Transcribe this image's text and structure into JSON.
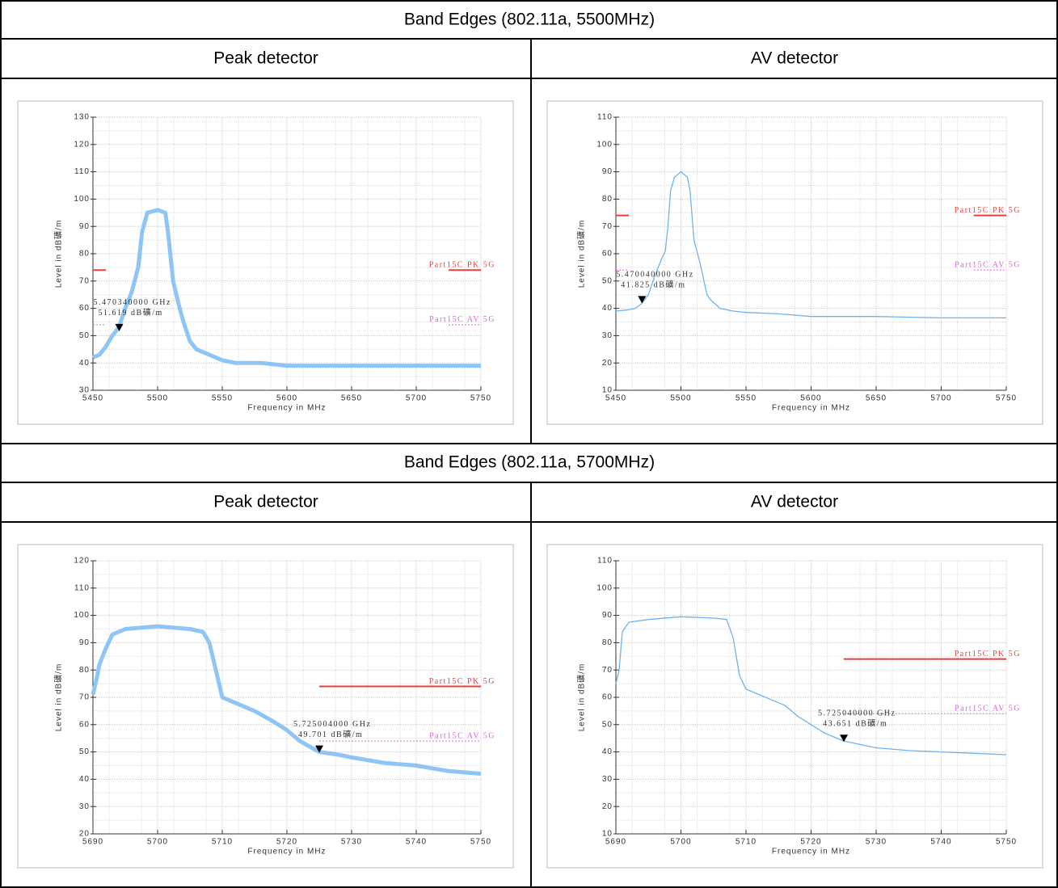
{
  "sections": [
    {
      "title": "Band Edges (802.11a, 5500MHz)",
      "headers": [
        "Peak detector",
        "AV detector"
      ]
    },
    {
      "title": "Band Edges (802.11a, 5700MHz)",
      "headers": [
        "Peak detector",
        "AV detector"
      ]
    }
  ],
  "chart_data": [
    {
      "type": "line",
      "x_label": "Frequency in MHz",
      "y_label": "Level in dB礦/m",
      "xlim": [
        5450,
        5750
      ],
      "ylim": [
        30,
        130
      ],
      "xticks": [
        5450,
        5500,
        5550,
        5600,
        5650,
        5700,
        5750
      ],
      "yticks": [
        30,
        40,
        50,
        60,
        70,
        80,
        90,
        100,
        110,
        120,
        130
      ],
      "grid": true,
      "series": [
        {
          "color": "#8ec5f5",
          "x": [
            5450,
            5455,
            5460,
            5465,
            5470,
            5475,
            5480,
            5485,
            5488,
            5492,
            5500,
            5506,
            5508,
            5512,
            5516,
            5520,
            5525,
            5530,
            5540,
            5550,
            5560,
            5580,
            5600,
            5625,
            5650,
            5675,
            5700,
            5725,
            5750
          ],
          "values": [
            42,
            43,
            46,
            50,
            53,
            60,
            66,
            75,
            88,
            95,
            96,
            95,
            88,
            70,
            62,
            55,
            48,
            45,
            43,
            41,
            40,
            40,
            39,
            39,
            39,
            39,
            39,
            39,
            39
          ]
        }
      ],
      "limits": [
        {
          "name": "Part15C PK 5G",
          "color": "#e84040",
          "value": 74,
          "ranges": [
            [
              5450,
              5460
            ],
            [
              5725,
              5750
            ]
          ]
        },
        {
          "name": "Part15C AV 5G",
          "color": "#e060e0",
          "value": 54,
          "dashed": true,
          "ranges": [
            [
              5450,
              5460
            ],
            [
              5725,
              5750
            ]
          ]
        }
      ],
      "marker": {
        "x": 5470.34,
        "y": 51.619,
        "freq_label": "5.470340000 GHz",
        "level_label": "51.619 dB礦/m"
      }
    },
    {
      "type": "line",
      "x_label": "Frequency in MHz",
      "y_label": "Level in dB礦/m",
      "xlim": [
        5450,
        5750
      ],
      "ylim": [
        10,
        110
      ],
      "xticks": [
        5450,
        5500,
        5550,
        5600,
        5650,
        5700,
        5750
      ],
      "yticks": [
        10,
        20,
        30,
        40,
        50,
        60,
        70,
        80,
        90,
        100,
        110
      ],
      "grid": true,
      "series": [
        {
          "color": "#6fb3ec",
          "x": [
            5450,
            5460,
            5465,
            5470,
            5475,
            5480,
            5485,
            5488,
            5490,
            5492,
            5495,
            5500,
            5505,
            5507,
            5510,
            5515,
            5520,
            5523,
            5530,
            5540,
            5550,
            5575,
            5600,
            5650,
            5700,
            5750
          ],
          "values": [
            39,
            39.5,
            40,
            41.8,
            45,
            52,
            58,
            61,
            70,
            83,
            88,
            90,
            88,
            83,
            65,
            56,
            45,
            43,
            40,
            39,
            38.5,
            38,
            37,
            37,
            36.5,
            36.5
          ]
        }
      ],
      "limits": [
        {
          "name": "Part15C PK 5G",
          "color": "#e84040",
          "value": 74,
          "ranges": [
            [
              5450,
              5460
            ],
            [
              5725,
              5750
            ]
          ]
        },
        {
          "name": "Part15C AV 5G",
          "color": "#e060e0",
          "value": 54,
          "dashed": true,
          "ranges": [
            [
              5450,
              5460
            ],
            [
              5725,
              5750
            ]
          ]
        }
      ],
      "marker": {
        "x": 5470.04,
        "y": 41.825,
        "freq_label": "5.470040000 GHz",
        "level_label": "41.825 dB礦/m"
      }
    },
    {
      "type": "line",
      "x_label": "Frequency in MHz",
      "y_label": "Level in dB礦/m",
      "xlim": [
        5690,
        5750
      ],
      "ylim": [
        20,
        120
      ],
      "xticks": [
        5690,
        5700,
        5710,
        5720,
        5730,
        5740,
        5750
      ],
      "yticks": [
        20,
        30,
        40,
        50,
        60,
        70,
        80,
        90,
        100,
        110,
        120
      ],
      "grid": true,
      "series": [
        {
          "color": "#8ec5f5",
          "x": [
            5690,
            5690.5,
            5691,
            5692,
            5693,
            5695,
            5700,
            5705,
            5707,
            5708,
            5709,
            5710,
            5712,
            5715,
            5718,
            5720,
            5722,
            5725,
            5728,
            5730,
            5735,
            5740,
            5745,
            5750
          ],
          "values": [
            71,
            76,
            82,
            88,
            93,
            95,
            96,
            95,
            94,
            90,
            80,
            70,
            68,
            65,
            61,
            58,
            54,
            50,
            49,
            48,
            46,
            45,
            43,
            42
          ]
        }
      ],
      "limits": [
        {
          "name": "Part15C PK 5G",
          "color": "#e84040",
          "value": 74,
          "ranges": [
            [
              5725,
              5750
            ]
          ]
        },
        {
          "name": "Part15C AV 5G",
          "color": "#e060e0",
          "value": 54,
          "dashed": true,
          "ranges": [
            [
              5725,
              5750
            ]
          ]
        }
      ],
      "marker": {
        "x": 5725.004,
        "y": 49.701,
        "freq_label": "5.725004000 GHz",
        "level_label": "49.701 dB礦/m"
      }
    },
    {
      "type": "line",
      "x_label": "Frequency in MHz",
      "y_label": "Level in dB礦/m",
      "xlim": [
        5690,
        5750
      ],
      "ylim": [
        10,
        110
      ],
      "xticks": [
        5690,
        5700,
        5710,
        5720,
        5730,
        5740,
        5750
      ],
      "yticks": [
        10,
        20,
        30,
        40,
        50,
        60,
        70,
        80,
        90,
        100,
        110
      ],
      "grid": true,
      "series": [
        {
          "color": "#6fb3ec",
          "x": [
            5690,
            5690.5,
            5691,
            5692,
            5695,
            5700,
            5705,
            5707,
            5708,
            5709,
            5710,
            5712,
            5715,
            5716,
            5718,
            5720,
            5722,
            5725,
            5728,
            5730,
            5735,
            5740,
            5745,
            5750
          ],
          "values": [
            65,
            70,
            84,
            87.5,
            88.5,
            89.5,
            89,
            88.5,
            82,
            68,
            63,
            61,
            58,
            57,
            53,
            50,
            47,
            44,
            42.5,
            41.5,
            40.5,
            40,
            39.5,
            39
          ]
        }
      ],
      "limits": [
        {
          "name": "Part15C PK 5G",
          "color": "#e84040",
          "value": 74,
          "ranges": [
            [
              5725,
              5750
            ]
          ]
        },
        {
          "name": "Part15C AV 5G",
          "color": "#e060e0",
          "value": 54,
          "dashed": true,
          "ranges": [
            [
              5725,
              5750
            ]
          ]
        }
      ],
      "marker": {
        "x": 5725.04,
        "y": 43.651,
        "freq_label": "5.725040000 GHz",
        "level_label": "43.651 dB礦/m"
      }
    }
  ]
}
